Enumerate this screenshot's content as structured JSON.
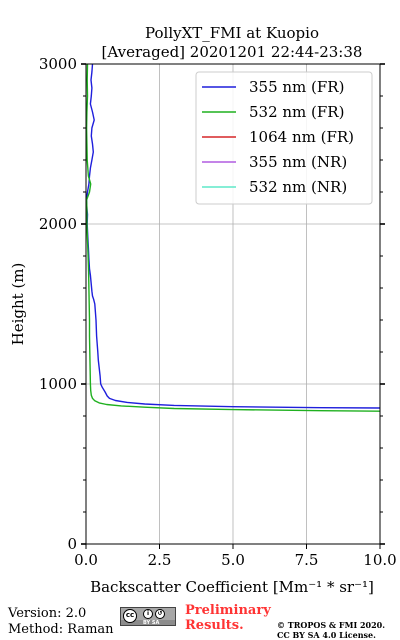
{
  "chart_data": {
    "type": "line",
    "title_line1": "PollyXT_FMI at Kuopio",
    "title_line2": "[Averaged] 20201201 22:44-23:38",
    "xlabel": "Backscatter Coefficient [Mm⁻¹ * sr⁻¹]",
    "ylabel": "Height (m)",
    "xlim": [
      0,
      10
    ],
    "ylim": [
      0,
      3000
    ],
    "x_ticks": [
      0,
      2.5,
      5,
      7.5,
      10
    ],
    "x_tick_labels": [
      "0.0",
      "2.5",
      "5.0",
      "7.5",
      "10.0"
    ],
    "y_ticks": [
      0,
      1000,
      2000,
      3000
    ],
    "y_tick_labels": [
      "0",
      "1000",
      "2000",
      "3000"
    ],
    "grid": true,
    "legend_position": "top-right",
    "series": [
      {
        "name": "355 nm (FR)",
        "color": "#1f1fdc",
        "points": [
          [
            10.0,
            850
          ],
          [
            8.0,
            852
          ],
          [
            5.0,
            858
          ],
          [
            3.0,
            866
          ],
          [
            2.0,
            875
          ],
          [
            1.4,
            885
          ],
          [
            1.0,
            897
          ],
          [
            0.8,
            910
          ],
          [
            0.72,
            925
          ],
          [
            0.65,
            950
          ],
          [
            0.55,
            980
          ],
          [
            0.5,
            1000
          ],
          [
            0.48,
            1050
          ],
          [
            0.45,
            1100
          ],
          [
            0.42,
            1150
          ],
          [
            0.4,
            1200
          ],
          [
            0.38,
            1250
          ],
          [
            0.36,
            1300
          ],
          [
            0.35,
            1350
          ],
          [
            0.34,
            1400
          ],
          [
            0.32,
            1450
          ],
          [
            0.3,
            1500
          ],
          [
            0.26,
            1530
          ],
          [
            0.22,
            1550
          ],
          [
            0.2,
            1580
          ],
          [
            0.18,
            1620
          ],
          [
            0.15,
            1680
          ],
          [
            0.12,
            1720
          ],
          [
            0.1,
            1780
          ],
          [
            0.08,
            1850
          ],
          [
            0.06,
            1920
          ],
          [
            0.04,
            2000
          ],
          [
            0.05,
            2060
          ],
          [
            0.03,
            2100
          ],
          [
            0.02,
            2150
          ],
          [
            0.05,
            2200
          ],
          [
            0.1,
            2250
          ],
          [
            0.12,
            2300
          ],
          [
            0.15,
            2350
          ],
          [
            0.2,
            2400
          ],
          [
            0.25,
            2450
          ],
          [
            0.22,
            2500
          ],
          [
            0.18,
            2550
          ],
          [
            0.2,
            2600
          ],
          [
            0.28,
            2650
          ],
          [
            0.22,
            2700
          ],
          [
            0.15,
            2750
          ],
          [
            0.18,
            2800
          ],
          [
            0.2,
            2850
          ],
          [
            0.17,
            2900
          ],
          [
            0.2,
            2950
          ],
          [
            0.22,
            3000
          ]
        ]
      },
      {
        "name": "532 nm (FR)",
        "color": "#1fb01f",
        "points": [
          [
            10.0,
            830
          ],
          [
            8.0,
            833
          ],
          [
            5.0,
            840
          ],
          [
            3.0,
            847
          ],
          [
            2.0,
            855
          ],
          [
            1.2,
            863
          ],
          [
            0.7,
            872
          ],
          [
            0.45,
            882
          ],
          [
            0.3,
            895
          ],
          [
            0.22,
            910
          ],
          [
            0.18,
            930
          ],
          [
            0.16,
            960
          ],
          [
            0.15,
            1000
          ],
          [
            0.14,
            1100
          ],
          [
            0.13,
            1200
          ],
          [
            0.12,
            1300
          ],
          [
            0.12,
            1400
          ],
          [
            0.11,
            1500
          ],
          [
            0.1,
            1600
          ],
          [
            0.09,
            1700
          ],
          [
            0.07,
            1800
          ],
          [
            0.05,
            1900
          ],
          [
            0.03,
            2000
          ],
          [
            0.03,
            2100
          ],
          [
            0.02,
            2150
          ],
          [
            0.12,
            2200
          ],
          [
            0.16,
            2250
          ],
          [
            0.08,
            2300
          ],
          [
            0.04,
            2400
          ],
          [
            0.03,
            2500
          ],
          [
            0.02,
            2600
          ],
          [
            0.03,
            2700
          ],
          [
            0.05,
            2800
          ],
          [
            0.04,
            2900
          ],
          [
            0.05,
            3000
          ]
        ]
      },
      {
        "name": "1064 nm (FR)",
        "color": "#d62728",
        "points": []
      },
      {
        "name": "355 nm (NR)",
        "color": "#b05ce0",
        "points": []
      },
      {
        "name": "532 nm (NR)",
        "color": "#5fe8c8",
        "points": []
      }
    ]
  },
  "footer": {
    "version": "Version: 2.0",
    "method": "Method: Raman",
    "preliminary_line1": "Preliminary",
    "preliminary_line2": "Results.",
    "copyright_line1": "© TROPOS & FMI 2020.",
    "copyright_line2": "CC BY SA 4.0 License.",
    "license_badge_icon": "cc-by-sa-icon"
  }
}
